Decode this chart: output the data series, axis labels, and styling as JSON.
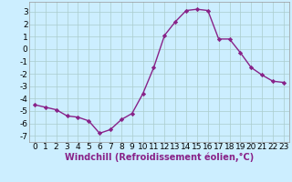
{
  "x": [
    0,
    1,
    2,
    3,
    4,
    5,
    6,
    7,
    8,
    9,
    10,
    11,
    12,
    13,
    14,
    15,
    16,
    17,
    18,
    19,
    20,
    21,
    22,
    23
  ],
  "y": [
    -4.5,
    -4.7,
    -4.9,
    -5.4,
    -5.5,
    -5.8,
    -6.8,
    -6.5,
    -5.7,
    -5.2,
    -3.6,
    -1.5,
    1.1,
    2.2,
    3.1,
    3.2,
    3.1,
    0.8,
    0.8,
    -0.3,
    -1.5,
    -2.1,
    -2.6,
    -2.7
  ],
  "line_color": "#882288",
  "marker": "D",
  "marker_size": 2.2,
  "background_color": "#cceeff",
  "grid_color": "#aacccc",
  "xlabel": "Windchill (Refroidissement éolien,°C)",
  "xlim": [
    -0.5,
    23.5
  ],
  "ylim": [
    -7.5,
    3.8
  ],
  "yticks": [
    -7,
    -6,
    -5,
    -4,
    -3,
    -2,
    -1,
    0,
    1,
    2,
    3
  ],
  "xticks": [
    0,
    1,
    2,
    3,
    4,
    5,
    6,
    7,
    8,
    9,
    10,
    11,
    12,
    13,
    14,
    15,
    16,
    17,
    18,
    19,
    20,
    21,
    22,
    23
  ],
  "tick_fontsize": 6.5,
  "xlabel_fontsize": 7.0,
  "line_width": 1.0
}
